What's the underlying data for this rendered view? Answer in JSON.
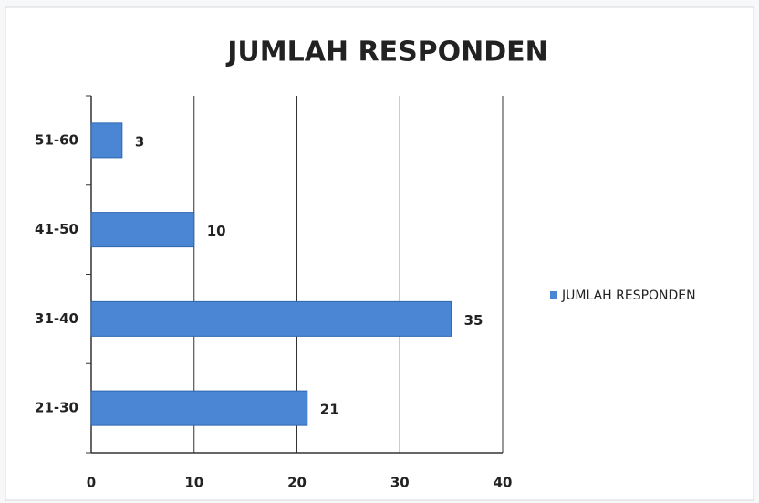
{
  "chart_data": {
    "type": "bar",
    "orientation": "horizontal",
    "title": "JUMLAH RESPONDEN",
    "categories": [
      "21-30",
      "31-40",
      "41-50",
      "51-60"
    ],
    "series": [
      {
        "name": "JUMLAH RESPONDEN",
        "color": "#4a86d4",
        "values": [
          21,
          35,
          10,
          3
        ]
      }
    ],
    "xlim": [
      0,
      40
    ],
    "xticks": [
      0,
      10,
      20,
      30,
      40
    ],
    "grid": true,
    "legend": "right"
  }
}
